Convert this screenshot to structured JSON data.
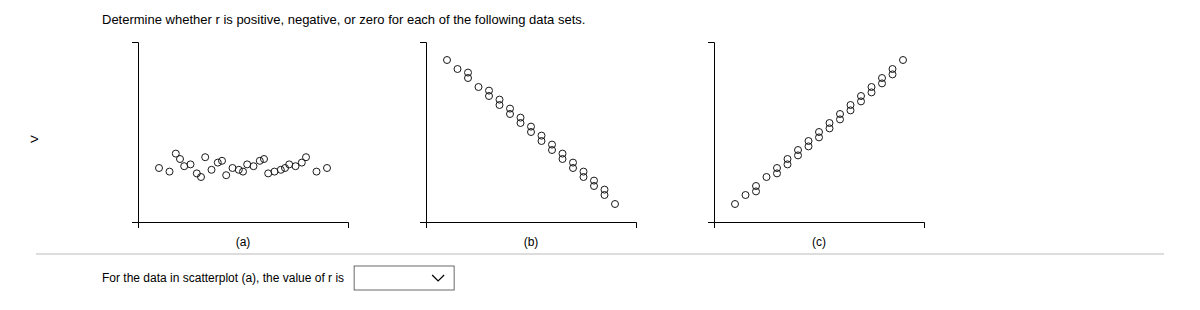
{
  "title": "Determine whether r is positive, negative, or zero for each of the following data sets.",
  "annotations": [
    ">",
    "For the data in scatterplot (a), the value of r is"
  ],
  "chart_data": [
    {
      "type": "scatter",
      "xlabel": "(a)",
      "x": [
        1,
        2,
        1.5,
        2.5,
        3,
        1.8,
        2.2,
        3.5,
        4,
        2.8,
        3.2,
        4.5,
        5,
        3.8,
        4.2,
        5.5,
        6,
        4.8,
        5.2,
        6.5,
        7,
        5.8,
        6.2,
        7.5,
        8,
        6.8,
        7.2,
        8.5,
        9,
        7.8
      ],
      "values": [
        3,
        3.5,
        2.8,
        3.2,
        2.5,
        3.8,
        3.1,
        2.9,
        3.4,
        2.7,
        3.6,
        3.0,
        2.8,
        3.3,
        2.6,
        3.1,
        3.5,
        2.9,
        3.2,
        2.8,
        3.0,
        3.4,
        2.7,
        3.1,
        3.6,
        2.9,
        3.2,
        2.8,
        3.0,
        3.3
      ],
      "xlim": [
        0,
        10
      ],
      "ylim": [
        0,
        10
      ],
      "xticks": [],
      "yticks": [],
      "tick_labels": false,
      "color": "#1a1a1a",
      "marker": "open-circle"
    },
    {
      "type": "scatter",
      "xlabel": "(b)",
      "x": [
        1,
        1.5,
        2,
        2,
        2.5,
        3,
        3,
        3.5,
        3.5,
        4,
        4,
        4.5,
        4.5,
        5,
        5,
        5.5,
        5.5,
        6,
        6,
        6.5,
        6.5,
        7,
        7,
        7.5,
        7.5,
        8,
        8,
        8.5,
        8.5,
        9
      ],
      "values": [
        9,
        8.5,
        8,
        8.3,
        7.5,
        7,
        7.3,
        6.5,
        6.8,
        6,
        6.3,
        5.5,
        5.8,
        5,
        5.3,
        4.5,
        4.8,
        4,
        4.3,
        3.5,
        3.8,
        3,
        3.3,
        2.5,
        2.8,
        2,
        2.3,
        1.5,
        1.8,
        1
      ],
      "xlim": [
        0,
        10
      ],
      "ylim": [
        0,
        10
      ],
      "xticks": [],
      "yticks": [],
      "tick_labels": false,
      "color": "#1a1a1a",
      "marker": "open-circle"
    },
    {
      "type": "scatter",
      "xlabel": "(c)",
      "x": [
        1,
        1.5,
        2,
        2,
        2.5,
        3,
        3,
        3.5,
        3.5,
        4,
        4,
        4.5,
        4.5,
        5,
        5,
        5.5,
        5.5,
        6,
        6,
        6.5,
        6.5,
        7,
        7,
        7.5,
        7.5,
        8,
        8,
        8.5,
        8.5,
        9
      ],
      "values": [
        1,
        1.5,
        2,
        1.7,
        2.5,
        3,
        2.7,
        3.5,
        3.2,
        4,
        3.7,
        4.5,
        4.2,
        5,
        4.7,
        5.5,
        5.2,
        6,
        5.7,
        6.5,
        6.2,
        7,
        6.7,
        7.5,
        7.2,
        8,
        7.7,
        8.5,
        8.2,
        9
      ],
      "xlim": [
        0,
        10
      ],
      "ylim": [
        0,
        10
      ],
      "xticks": [],
      "yticks": [],
      "tick_labels": false,
      "color": "#1a1a1a",
      "marker": "open-circle"
    }
  ]
}
